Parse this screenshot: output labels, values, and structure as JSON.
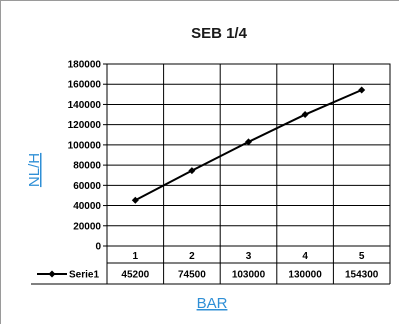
{
  "chart_data": {
    "type": "line",
    "title": "SEB 1/4",
    "xlabel": "BAR",
    "ylabel": "NL/H",
    "categories": [
      "1",
      "2",
      "3",
      "4",
      "5"
    ],
    "series": [
      {
        "name": "Serie1",
        "values": [
          45200,
          74500,
          103000,
          130000,
          154300
        ]
      }
    ],
    "table_values": [
      "45200",
      "74500",
      "103000",
      "130000",
      "154300"
    ],
    "ylim": [
      0,
      180000
    ],
    "yticks": [
      "0",
      "20000",
      "40000",
      "60000",
      "80000",
      "100000",
      "120000",
      "140000",
      "160000",
      "180000"
    ],
    "grid": true,
    "legend": "data-table-left",
    "colors": {
      "line": "#000000",
      "axis_title": "#2f8fd6",
      "grid": "#000000"
    },
    "marker_icon": "diamond"
  }
}
